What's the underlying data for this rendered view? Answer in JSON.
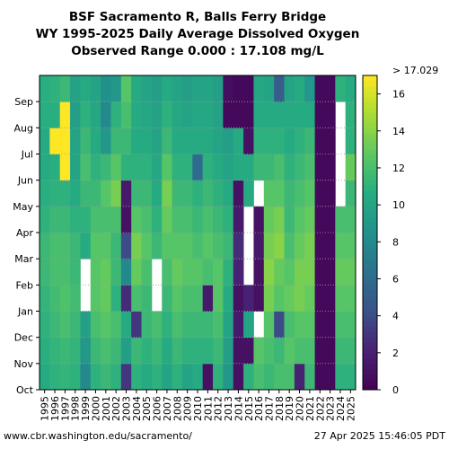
{
  "chart_data": {
    "type": "heatmap",
    "title_lines": [
      "BSF Sacramento R, Balls Ferry Bridge",
      "WY 1995-2025 Daily Average Dissolved Oxygen",
      "Observed Range 0.000 : 17.108 mg/L"
    ],
    "x_categories": [
      "1995",
      "1996",
      "1997",
      "1998",
      "1999",
      "2000",
      "2001",
      "2002",
      "2003",
      "2004",
      "2005",
      "2006",
      "2007",
      "2008",
      "2009",
      "2010",
      "2011",
      "2012",
      "2013",
      "2014",
      "2015",
      "2016",
      "2017",
      "2018",
      "2019",
      "2020",
      "2021",
      "2022",
      "2023",
      "2024",
      "2025"
    ],
    "y_categories": [
      "Oct",
      "Nov",
      "Dec",
      "Jan",
      "Feb",
      "Mar",
      "Apr",
      "May",
      "Jun",
      "Jul",
      "Aug",
      "Sep"
    ],
    "colorbar": {
      "min": 0,
      "max": 17,
      "ticks": [
        0,
        2,
        4,
        6,
        8,
        10,
        12,
        14,
        16
      ],
      "extend_label": "> 17.029",
      "colormap": "viridis"
    },
    "monthly_do_mg_per_l": [
      [
        10.5,
        10.8,
        11.0,
        11.2,
        11.5,
        11.5,
        11.0,
        10.8,
        10.5,
        10.5,
        10.8,
        10.8
      ],
      [
        11.0,
        11.2,
        11.5,
        11.8,
        12.0,
        12.0,
        11.5,
        11.0,
        10.8,
        17.0,
        10.8,
        11.0
      ],
      [
        11.2,
        11.5,
        12.0,
        12.2,
        12.0,
        12.0,
        11.5,
        11.0,
        17.0,
        17.0,
        17.0,
        11.5
      ],
      [
        11.0,
        11.2,
        11.5,
        11.8,
        11.5,
        11.5,
        11.0,
        10.5,
        10.0,
        10.0,
        9.5,
        9.8
      ],
      [
        8.0,
        9.0,
        9.5,
        null,
        null,
        10.5,
        11.0,
        11.5,
        12.0,
        11.5,
        11.0,
        10.5
      ],
      [
        11.0,
        11.5,
        12.0,
        12.5,
        12.5,
        12.5,
        12.0,
        11.5,
        11.0,
        10.5,
        10.2,
        10.0
      ],
      [
        11.5,
        12.0,
        12.5,
        13.0,
        13.0,
        12.5,
        12.0,
        12.5,
        11.5,
        9.0,
        8.0,
        8.5
      ],
      [
        11.0,
        11.5,
        12.0,
        11.0,
        11.5,
        11.5,
        12.0,
        13.5,
        12.5,
        11.5,
        11.0,
        9.0
      ],
      [
        3.0,
        9.5,
        10.5,
        2.5,
        8.0,
        4.0,
        1.0,
        1.5,
        11.0,
        11.5,
        12.0,
        12.5
      ],
      [
        11.0,
        11.5,
        3.0,
        12.0,
        13.0,
        13.5,
        12.5,
        11.5,
        11.0,
        10.5,
        10.5,
        10.5
      ],
      [
        10.5,
        11.0,
        11.5,
        11.5,
        12.0,
        12.5,
        12.0,
        11.5,
        11.0,
        10.5,
        10.2,
        10.0
      ],
      [
        11.0,
        11.5,
        12.0,
        null,
        null,
        11.5,
        11.0,
        10.5,
        10.2,
        10.0,
        9.8,
        9.5
      ],
      [
        10.0,
        10.5,
        11.0,
        11.5,
        12.0,
        12.5,
        13.0,
        13.5,
        12.5,
        11.5,
        11.0,
        10.5
      ],
      [
        11.0,
        11.5,
        12.0,
        12.5,
        13.0,
        12.5,
        12.0,
        11.5,
        11.0,
        10.5,
        10.2,
        10.0
      ],
      [
        10.0,
        11.0,
        11.5,
        12.0,
        12.5,
        12.5,
        12.0,
        11.5,
        11.0,
        10.5,
        10.0,
        9.5
      ],
      [
        10.5,
        11.0,
        11.5,
        12.0,
        12.5,
        12.0,
        11.5,
        11.0,
        6.0,
        10.5,
        10.2,
        10.0
      ],
      [
        1.0,
        11.0,
        11.5,
        1.5,
        12.0,
        12.5,
        12.0,
        11.5,
        11.0,
        10.5,
        10.2,
        10.0
      ],
      [
        11.0,
        11.5,
        12.0,
        12.5,
        12.5,
        12.0,
        11.5,
        11.0,
        10.5,
        10.0,
        9.8,
        9.5
      ],
      [
        9.0,
        9.5,
        10.0,
        10.5,
        11.0,
        11.5,
        11.0,
        10.5,
        10.0,
        9.5,
        0.5,
        0.8
      ],
      [
        1.0,
        1.0,
        1.5,
        1.0,
        2.0,
        2.5,
        1.5,
        1.0,
        10.5,
        10.5,
        0.5,
        0.5
      ],
      [
        11.0,
        1.0,
        10.0,
        2.0,
        null,
        null,
        null,
        10.5,
        10.5,
        1.0,
        0.5,
        0.5
      ],
      [
        12.0,
        12.5,
        null,
        1.0,
        1.0,
        1.5,
        1.0,
        null,
        11.5,
        11.0,
        10.5,
        10.2
      ],
      [
        11.5,
        12.0,
        12.5,
        13.5,
        14.0,
        13.5,
        13.0,
        12.5,
        11.5,
        11.0,
        10.5,
        10.0
      ],
      [
        12.0,
        11.5,
        4.0,
        12.5,
        13.0,
        14.0,
        13.5,
        12.5,
        12.0,
        11.0,
        10.5,
        5.0
      ],
      [
        12.0,
        12.5,
        12.0,
        13.0,
        12.5,
        12.0,
        11.5,
        11.5,
        11.0,
        10.5,
        10.5,
        10.0
      ],
      [
        2.0,
        12.0,
        12.5,
        13.5,
        13.5,
        13.0,
        12.5,
        12.0,
        11.5,
        11.0,
        10.5,
        10.5
      ],
      [
        11.5,
        12.0,
        12.5,
        13.0,
        13.5,
        13.5,
        13.0,
        12.5,
        12.0,
        11.5,
        10.5,
        9.0
      ],
      [
        0.5,
        0.5,
        0.5,
        0.5,
        0.5,
        0.5,
        0.5,
        0.5,
        0.5,
        0.5,
        0.5,
        0.5
      ],
      [
        0.5,
        0.5,
        0.5,
        0.5,
        0.5,
        0.5,
        0.5,
        0.5,
        0.5,
        0.5,
        0.5,
        0.5
      ],
      [
        11.0,
        11.5,
        12.0,
        12.5,
        13.0,
        12.5,
        12.0,
        null,
        null,
        null,
        null,
        11.0
      ],
      [
        11.0,
        11.5,
        12.0,
        12.5,
        13.0,
        12.5,
        12.0,
        11.5,
        13.0,
        11.0,
        11.0,
        10.5
      ]
    ]
  },
  "footer": {
    "url": "www.cbr.washington.edu/sacramento/",
    "timestamp": "27 Apr 2025 15:46:05 PDT"
  }
}
